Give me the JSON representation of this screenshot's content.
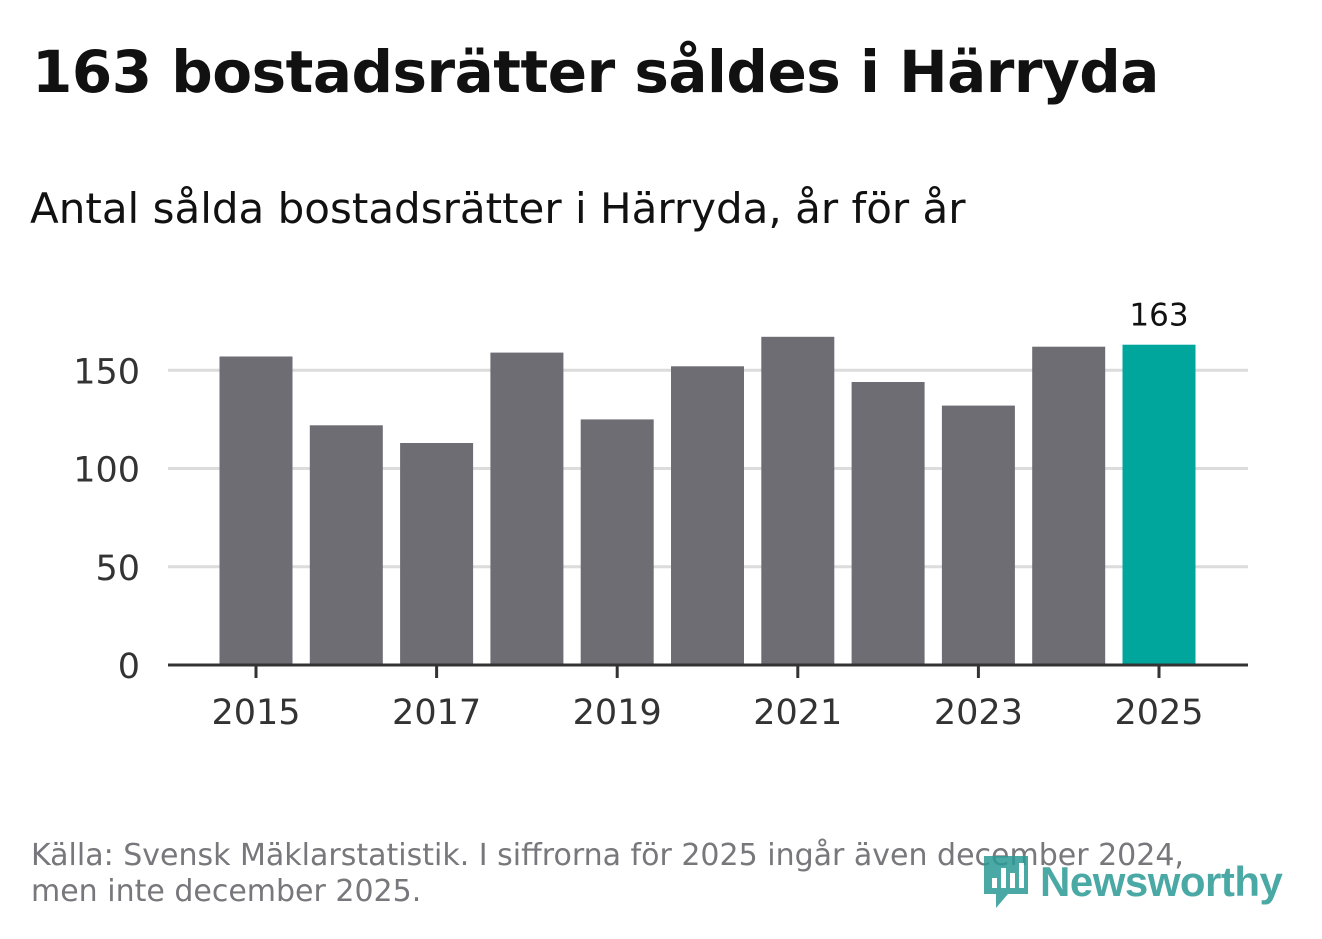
{
  "title": "163 bostadsrätter såldes i Härryda",
  "subtitle": "Antal sålda bostadsrätter i Härryda, år för år",
  "source": "Källa: Svensk Mäklarstatistik. I siffrorna för 2025 ingår även december 2024, men inte december 2025.",
  "brand": {
    "name": "Newsworthy",
    "icon": "newsworthy-logo-icon",
    "color": "#2b9b96"
  },
  "colors": {
    "bar": "#6e6d73",
    "highlight": "#00a69c",
    "grid": "#dcdcdc",
    "axis": "#333333",
    "text": "#333333"
  },
  "chart_data": {
    "type": "bar",
    "title": "Antal sålda bostadsrätter i Härryda, år för år",
    "xlabel": "",
    "ylabel": "",
    "categories": [
      "2015",
      "2016",
      "2017",
      "2018",
      "2019",
      "2020",
      "2021",
      "2022",
      "2023",
      "2024",
      "2025"
    ],
    "values": [
      157,
      122,
      113,
      159,
      125,
      152,
      167,
      144,
      132,
      162,
      163
    ],
    "highlight_index": 10,
    "data_labels": [
      {
        "index": 10,
        "text": "163"
      }
    ],
    "x_tick_labels": [
      "2015",
      "2017",
      "2019",
      "2021",
      "2023",
      "2025"
    ],
    "y_ticks": [
      0,
      50,
      100,
      150
    ],
    "ylim": [
      0,
      180
    ],
    "grid": true,
    "legend": "none"
  }
}
